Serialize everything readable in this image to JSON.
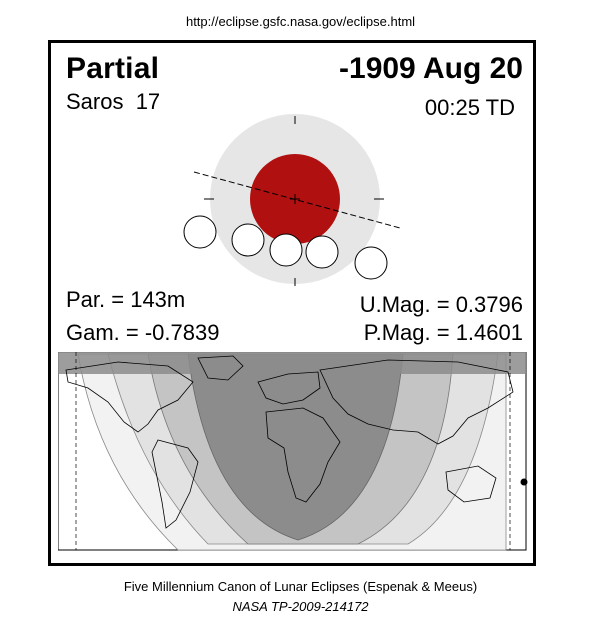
{
  "source_url": "http://eclipse.gsfc.nasa.gov/eclipse.html",
  "eclipse": {
    "type": "Partial",
    "date": "-1909 Aug 20",
    "saros": "Saros  17",
    "time": "00:25 TD"
  },
  "stats": {
    "par": "Par. = 143m",
    "gam": "Gam. = -0.7839",
    "umag": "U.Mag. = 0.3796",
    "pmag": "P.Mag. = 1.4601"
  },
  "colors": {
    "umbra": "#b01010",
    "penumbra": "#e6e6e6",
    "map_dark": "#8a8a8a",
    "map_mid": "#bdbdbd",
    "map_light": "#e0e0e0",
    "map_lighter": "#f0f0f0"
  },
  "footer": {
    "line1": "Five Millennium Canon of Lunar Eclipses (Espenak & Meeus)",
    "line2": "NASA TP-2009-214172"
  }
}
